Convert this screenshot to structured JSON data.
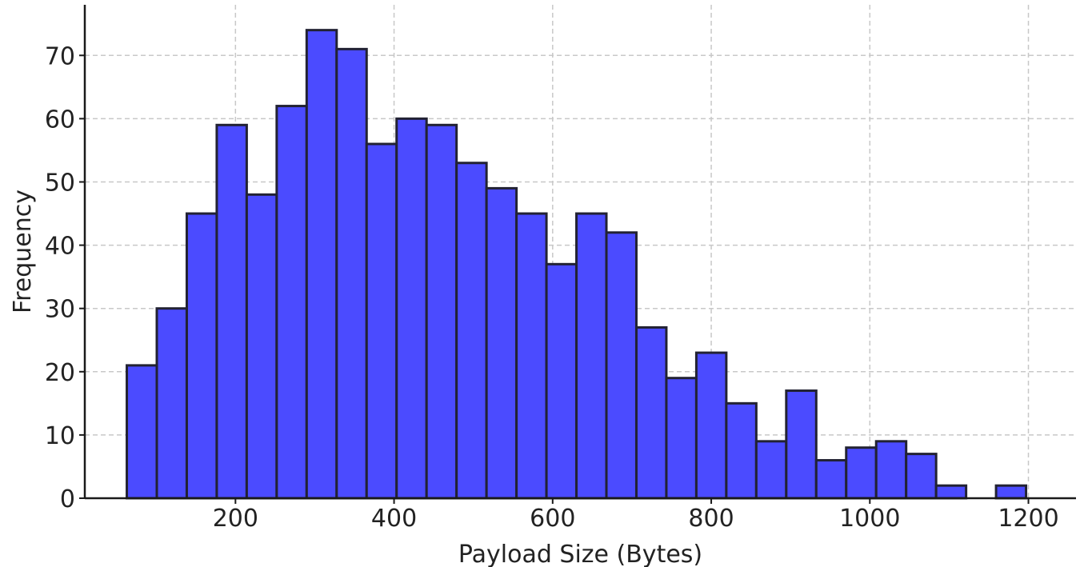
{
  "chart_data": {
    "type": "bar",
    "title": "",
    "xlabel": "Payload Size (Bytes)",
    "ylabel": "Frequency",
    "xlim": [
      10,
      1260
    ],
    "ylim": [
      0,
      78
    ],
    "x_ticks": [
      200,
      400,
      600,
      800,
      1000,
      1200
    ],
    "y_ticks": [
      0,
      10,
      20,
      30,
      40,
      50,
      60,
      70
    ],
    "grid": true,
    "bar_color": "#4b4bff",
    "edge_color": "#222233",
    "bin_start": 63,
    "bin_width": 37.8,
    "values": [
      21,
      30,
      45,
      59,
      48,
      62,
      74,
      71,
      56,
      60,
      59,
      53,
      49,
      45,
      37,
      45,
      42,
      27,
      19,
      23,
      15,
      9,
      17,
      6,
      8,
      9,
      7,
      2,
      0,
      2
    ]
  }
}
